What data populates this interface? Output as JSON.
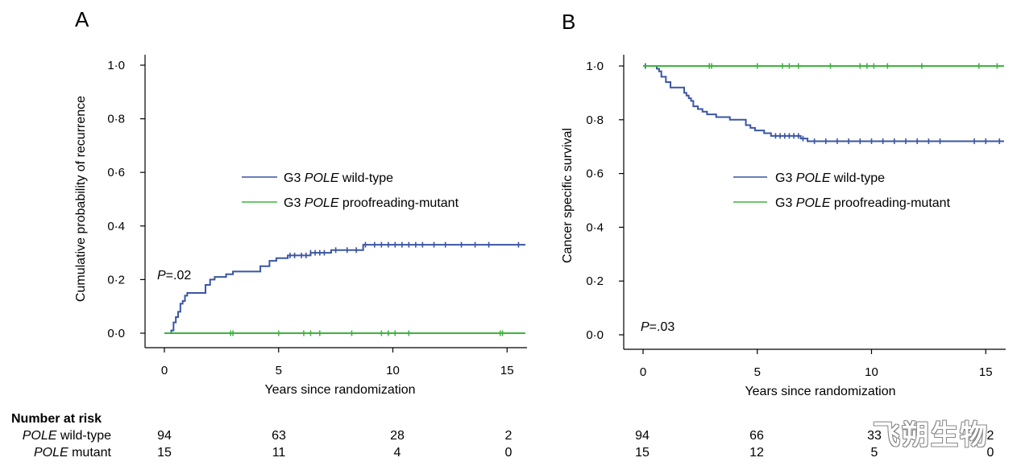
{
  "watermark": "飞朔生物",
  "risk_table": {
    "title": "Number at risk",
    "rows": [
      {
        "label_italic": "POLE",
        "label_rest": " wild-type",
        "panelA": [
          "94",
          "63",
          "28",
          "2"
        ],
        "panelB": [
          "94",
          "66",
          "33",
          "2"
        ]
      },
      {
        "label_italic": "POLE",
        "label_rest": " mutant",
        "panelA": [
          "15",
          "11",
          "4",
          "0"
        ],
        "panelB": [
          "15",
          "12",
          "5",
          "0"
        ]
      }
    ]
  },
  "colors": {
    "wild_type": "#3a56a3",
    "mutant": "#3db43d"
  },
  "chart_data": [
    {
      "panel": "A",
      "type": "line",
      "subtype": "step",
      "xlabel": "Years since randomization",
      "ylabel": "Cumulative probability of recurrence",
      "xlim": [
        0,
        15.8
      ],
      "ylim": [
        0,
        1
      ],
      "xticks": [
        "0",
        "5",
        "10",
        "15"
      ],
      "yticks": [
        "0·0",
        "0·2",
        "0·4",
        "0·6",
        "0·8",
        "1·0"
      ],
      "p_value": {
        "italic": "P",
        "text": "=.02"
      },
      "legend": [
        {
          "italic_prefix": "G3 ",
          "italic": "POLE",
          "rest": " wild-type"
        },
        {
          "italic_prefix": "G3 ",
          "italic": "POLE",
          "rest": " proofreading-mutant"
        }
      ],
      "series": [
        {
          "name": "G3 POLE wild-type",
          "color": "#3a56a3",
          "x": [
            0,
            0.3,
            0.4,
            0.5,
            0.6,
            0.7,
            0.8,
            0.9,
            1.0,
            1.2,
            1.8,
            2.0,
            2.2,
            2.7,
            3.0,
            3.5,
            4.2,
            4.6,
            4.9,
            5.4,
            5.8,
            6.4,
            7.3,
            8.7,
            15.8
          ],
          "y": [
            0,
            0.01,
            0.04,
            0.06,
            0.08,
            0.11,
            0.12,
            0.14,
            0.15,
            0.15,
            0.18,
            0.2,
            0.21,
            0.22,
            0.23,
            0.23,
            0.25,
            0.27,
            0.28,
            0.29,
            0.29,
            0.3,
            0.31,
            0.33,
            0.33
          ],
          "censored_x": [
            5.5,
            5.7,
            6.0,
            6.2,
            6.4,
            6.6,
            6.8,
            7.0,
            7.5,
            8.0,
            8.4,
            8.8,
            9.2,
            9.5,
            9.8,
            10.1,
            10.4,
            10.7,
            11.0,
            11.3,
            11.8,
            12.3,
            13.0,
            13.6,
            14.2,
            15.5
          ]
        },
        {
          "name": "G3 POLE proofreading-mutant",
          "color": "#3db43d",
          "x": [
            0,
            15.8
          ],
          "y": [
            0,
            0
          ],
          "censored_x": [
            2.9,
            3.0,
            5.0,
            6.1,
            6.4,
            6.8,
            8.2,
            9.5,
            9.8,
            10.1,
            10.7,
            14.7,
            14.8
          ]
        }
      ]
    },
    {
      "panel": "B",
      "type": "line",
      "subtype": "step",
      "xlabel": "Years since randomization",
      "ylabel": "Cancer specific survival",
      "xlim": [
        0,
        15.8
      ],
      "ylim": [
        0,
        1
      ],
      "xticks": [
        "0",
        "5",
        "10",
        "15"
      ],
      "yticks": [
        "0·0",
        "0·2",
        "0·4",
        "0·6",
        "0·8",
        "1·0"
      ],
      "p_value": {
        "italic": "P",
        "text": "=.03"
      },
      "legend": [
        {
          "italic_prefix": "G3 ",
          "italic": "POLE",
          "rest": " wild-type"
        },
        {
          "italic_prefix": "G3 ",
          "italic": "POLE",
          "rest": " proofreading-mutant"
        }
      ],
      "series": [
        {
          "name": "G3 POLE wild-type",
          "color": "#3a56a3",
          "x": [
            0,
            0.6,
            0.7,
            0.8,
            1.0,
            1.2,
            1.8,
            1.9,
            2.0,
            2.1,
            2.2,
            2.4,
            2.6,
            2.8,
            3.2,
            3.8,
            4.5,
            4.7,
            4.9,
            5.3,
            5.6,
            6.9,
            7.2,
            15.8
          ],
          "y": [
            1.0,
            0.99,
            0.98,
            0.96,
            0.94,
            0.92,
            0.9,
            0.89,
            0.88,
            0.87,
            0.85,
            0.84,
            0.83,
            0.82,
            0.81,
            0.8,
            0.78,
            0.77,
            0.76,
            0.75,
            0.74,
            0.73,
            0.72,
            0.72
          ],
          "censored_x": [
            0.1,
            5.8,
            6.0,
            6.2,
            6.4,
            6.6,
            6.8,
            7.0,
            7.5,
            8.0,
            8.5,
            9.0,
            9.5,
            10.0,
            10.5,
            11.0,
            11.5,
            12.0,
            12.5,
            13.0,
            14.5,
            15.0,
            15.6
          ]
        },
        {
          "name": "G3 POLE proofreading-mutant",
          "color": "#3db43d",
          "x": [
            0,
            15.8
          ],
          "y": [
            1.0,
            1.0
          ],
          "censored_x": [
            2.9,
            3.0,
            5.0,
            6.1,
            6.4,
            6.8,
            8.2,
            9.5,
            9.8,
            10.1,
            10.7,
            12.2,
            14.7,
            15.5
          ]
        }
      ]
    }
  ]
}
